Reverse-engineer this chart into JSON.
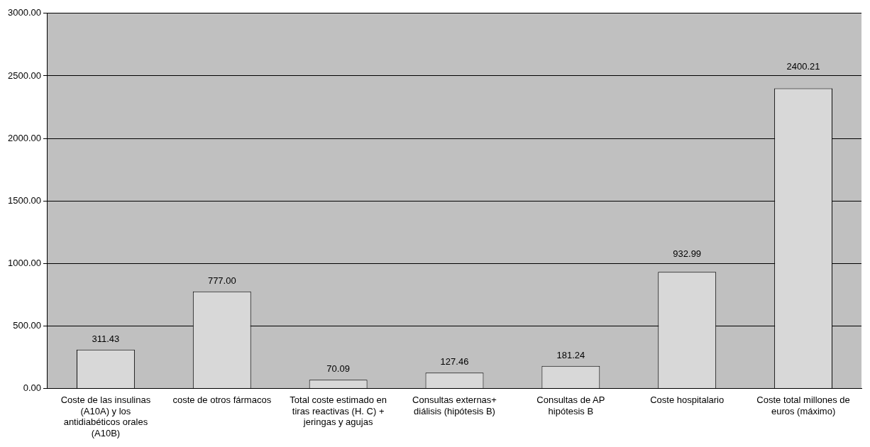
{
  "chart_data": {
    "type": "bar",
    "categories": [
      "Coste de las insulinas (A10A) y los antidiabéticos orales (A10B)",
      "coste de otros fármacos",
      "Total coste estimado en tiras reactivas (H. C) + jeringas y agujas",
      "Consultas externas+ diálisis (hipótesis B)",
      "Consultas de AP hipótesis B",
      "Coste hospitalario",
      "Coste total millones de euros (máximo)"
    ],
    "values": [
      311.43,
      777.0,
      70.09,
      127.46,
      181.24,
      932.99,
      2400.21
    ],
    "value_labels": [
      "311.43",
      "777.00",
      "70.09",
      "127.46",
      "181.24",
      "932.99",
      "2400.21"
    ],
    "color": "#d8d8d8",
    "ylim": [
      0,
      3000
    ],
    "yticks": [
      {
        "value": 0,
        "label": "0.00"
      },
      {
        "value": 500,
        "label": "500.00"
      },
      {
        "value": 1000,
        "label": "1000.00"
      },
      {
        "value": 1500,
        "label": "1500.00"
      },
      {
        "value": 2000,
        "label": "2000.00"
      },
      {
        "value": 2500,
        "label": "2500.00"
      },
      {
        "value": 3000,
        "label": "3000.00"
      }
    ],
    "grid": "y",
    "legend": false
  }
}
